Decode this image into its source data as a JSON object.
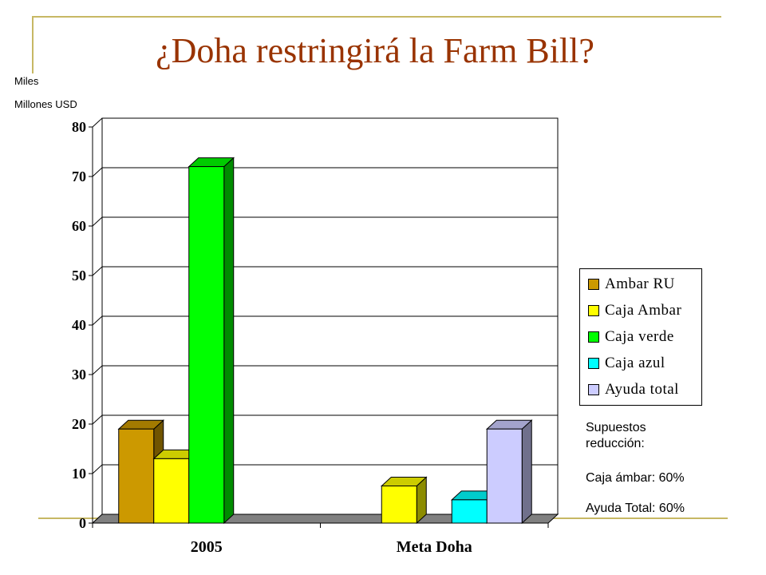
{
  "slide": {
    "title": "¿Doha restringirá la Farm Bill?",
    "unit_line1": "Miles",
    "unit_line2": "Millones USD",
    "assumptions_title": "Supuestos reducción:",
    "assumption_1": "Caja ámbar: 60%",
    "assumption_2": "Ayuda Total: 60%"
  },
  "colors": {
    "title": "#993300",
    "accent_lines": "#c7b864"
  },
  "chart_data": {
    "type": "bar",
    "title": "",
    "xlabel": "",
    "ylabel": "",
    "categories": [
      "2005",
      "Meta Doha"
    ],
    "ylim": [
      0,
      80
    ],
    "yticks": [
      "0",
      "10",
      "20",
      "30",
      "40",
      "50",
      "60",
      "70",
      "80"
    ],
    "grid": true,
    "legend_position": "right",
    "three_d": true,
    "series": [
      {
        "name": "Ambar RU",
        "color": "#cc9900",
        "values": [
          19,
          null
        ]
      },
      {
        "name": "Caja Ambar",
        "color": "#ffff00",
        "values": [
          13,
          7.5
        ]
      },
      {
        "name": "Caja verde",
        "color": "#00ff00",
        "values": [
          72,
          null
        ]
      },
      {
        "name": "Caja azul",
        "color": "#00ffff",
        "values": [
          null,
          4.7
        ]
      },
      {
        "name": "Ayuda total",
        "color": "#ccccff",
        "values": [
          null,
          19
        ]
      }
    ]
  }
}
